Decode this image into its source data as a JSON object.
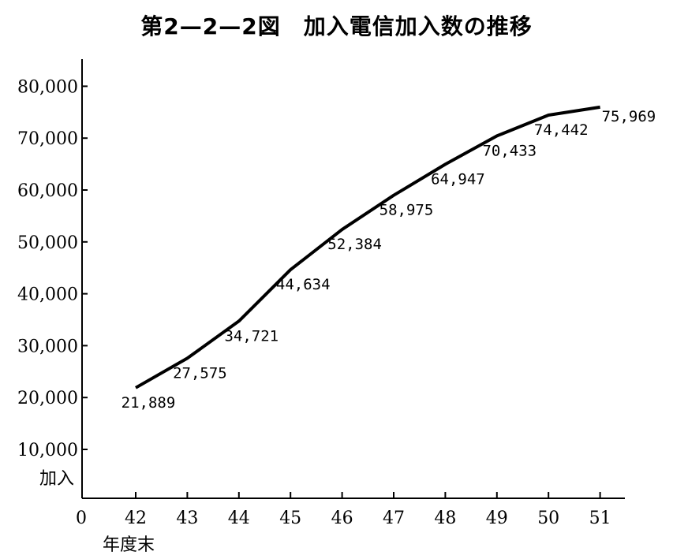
{
  "chart_data": {
    "type": "line",
    "title": "第2—2—2図　加入電信加入数の推移",
    "xlabel": "年度末",
    "ylabel": "加入",
    "origin_label": "0",
    "categories": [
      "42",
      "43",
      "44",
      "45",
      "46",
      "47",
      "48",
      "49",
      "50",
      "51"
    ],
    "series": [
      {
        "values": [
          21889,
          27575,
          34721,
          44634,
          52384,
          58975,
          64947,
          70433,
          74442,
          75969
        ],
        "labels": [
          "21,889",
          "27,575",
          "34,721",
          "44,634",
          "52,384",
          "58,975",
          "64,947",
          "70,433",
          "74,442",
          "75,969"
        ]
      }
    ],
    "yticks": [
      10000,
      20000,
      30000,
      40000,
      50000,
      60000,
      70000,
      80000
    ],
    "ytick_labels": [
      "10,000",
      "20,000",
      "30,000",
      "40,000",
      "50,000",
      "60,000",
      "70,000",
      "80,000"
    ],
    "ylim": [
      0,
      80000
    ],
    "grid": false,
    "line_color": "#000000"
  }
}
